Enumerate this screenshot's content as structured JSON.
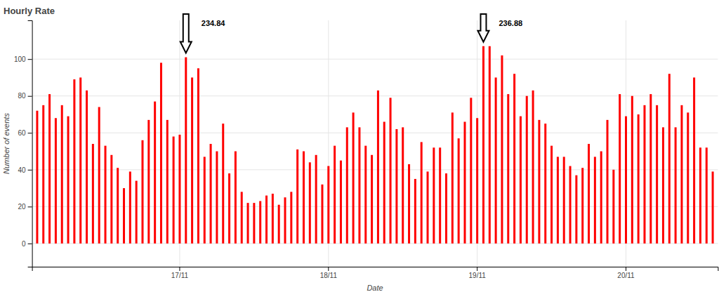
{
  "chart_data": {
    "type": "bar",
    "title": "Hourly Rate",
    "x_label": "Date",
    "y_label": "Number of events",
    "categories": [
      null,
      null,
      null,
      null,
      null,
      null,
      null,
      null,
      null,
      null,
      null,
      null,
      null,
      null,
      null,
      null,
      null,
      null,
      null,
      null,
      null,
      null,
      null,
      "17/11",
      null,
      null,
      null,
      null,
      null,
      null,
      null,
      null,
      null,
      null,
      null,
      null,
      null,
      null,
      null,
      null,
      null,
      null,
      null,
      null,
      null,
      null,
      null,
      "18/11",
      null,
      null,
      null,
      null,
      null,
      null,
      null,
      null,
      null,
      null,
      null,
      null,
      null,
      null,
      null,
      null,
      null,
      null,
      null,
      null,
      null,
      null,
      null,
      "19/11",
      null,
      null,
      null,
      null,
      null,
      null,
      null,
      null,
      null,
      null,
      null,
      null,
      null,
      null,
      null,
      null,
      null,
      null,
      null,
      null,
      null,
      null,
      null,
      "20/11",
      null,
      null,
      null,
      null,
      null,
      null,
      null,
      null,
      null,
      null,
      null,
      null,
      null,
      null
    ],
    "values": [
      72,
      75,
      81,
      68,
      75,
      69,
      89,
      90,
      83,
      54,
      74,
      53,
      48,
      41,
      30,
      39,
      34,
      56,
      67,
      77,
      98,
      67,
      58,
      59,
      101,
      90,
      95,
      47,
      54,
      50,
      65,
      38,
      50,
      28,
      22,
      22,
      23,
      26,
      27,
      21,
      25,
      28,
      51,
      50,
      44,
      48,
      32,
      42,
      53,
      45,
      63,
      71,
      63,
      53,
      48,
      83,
      66,
      79,
      62,
      63,
      43,
      35,
      55,
      39,
      52,
      52,
      38,
      71,
      57,
      66,
      79,
      68,
      107,
      107,
      90,
      102,
      81,
      92,
      69,
      80,
      83,
      67,
      65,
      53,
      47,
      47,
      42,
      37,
      41,
      54,
      47,
      50,
      67,
      40,
      81,
      69,
      80,
      70,
      75,
      81,
      75,
      63,
      92,
      63,
      75,
      71,
      90,
      52,
      52,
      39
    ],
    "color": "red",
    "ylim": [
      -12.6,
      121
    ],
    "yticks": [
      0,
      20,
      40,
      60,
      80,
      100
    ],
    "grid": true,
    "annotations": [
      {
        "text": "234.84",
        "index": 24
      },
      {
        "text": "236.88",
        "index": 72
      }
    ]
  }
}
